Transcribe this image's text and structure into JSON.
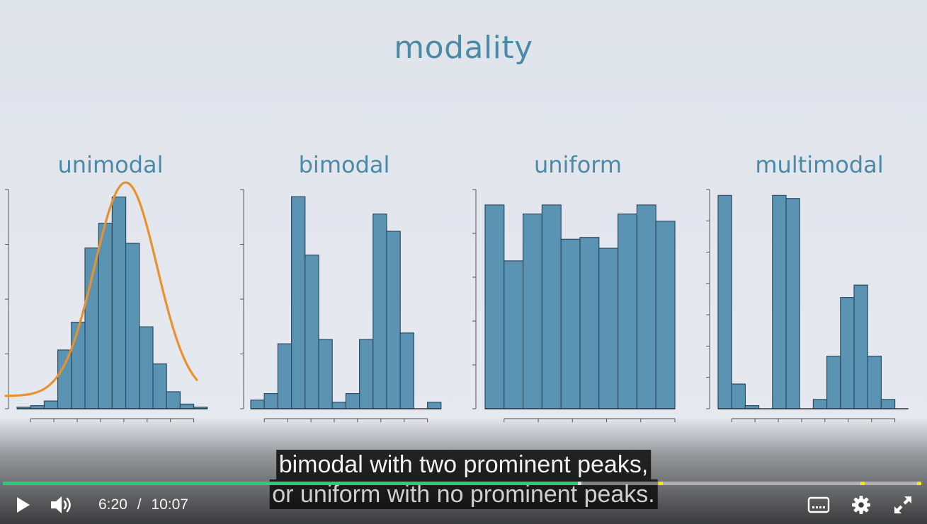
{
  "slide": {
    "title": "modality",
    "panels": [
      {
        "label": "unimodal"
      },
      {
        "label": "bimodal"
      },
      {
        "label": "uniform"
      },
      {
        "label": "multimodal"
      }
    ]
  },
  "colors": {
    "title": "#4a8aa6",
    "bar_fill": "#5b93b3",
    "bar_stroke": "#2b4d63",
    "curve": "#e8922f",
    "played": "#2ecc71"
  },
  "chart_data": [
    {
      "type": "bar",
      "title": "unimodal",
      "values": [
        1,
        2,
        5,
        38,
        56,
        104,
        120,
        137,
        107,
        53,
        29,
        11,
        3,
        1
      ],
      "overlay": "normal-curve",
      "ylim": [
        0,
        140
      ]
    },
    {
      "type": "bar",
      "title": "bimodal",
      "values": [
        4,
        7,
        30,
        98,
        71,
        32,
        3,
        7,
        32,
        90,
        82,
        35,
        0,
        3
      ],
      "ylim": [
        0,
        100
      ]
    },
    {
      "type": "bar",
      "title": "uniform",
      "values": [
        113,
        82,
        108,
        113,
        94,
        95,
        89,
        108,
        113,
        104
      ],
      "ylim": [
        0,
        120
      ]
    },
    {
      "type": "bar",
      "title": "multimodal",
      "values": [
        69,
        8,
        1,
        0,
        69,
        68,
        0,
        3,
        17,
        36,
        40,
        17,
        3,
        0
      ],
      "ylim": [
        0,
        70
      ]
    }
  ],
  "captions": {
    "line1": "bimodal with two prominent peaks,",
    "line2": "or uniform with no prominent peaks."
  },
  "player": {
    "current_time": "6:20",
    "separator": "/",
    "duration": "10:07",
    "progress_fraction": 0.626,
    "buffered_fraction": 0.63,
    "chapter_markers": [
      0.714,
      0.934,
      0.998
    ],
    "icons": {
      "play": "play-icon",
      "volume": "volume-icon",
      "captions": "captions-icon",
      "settings": "gear-icon",
      "fullscreen": "fullscreen-icon"
    }
  }
}
